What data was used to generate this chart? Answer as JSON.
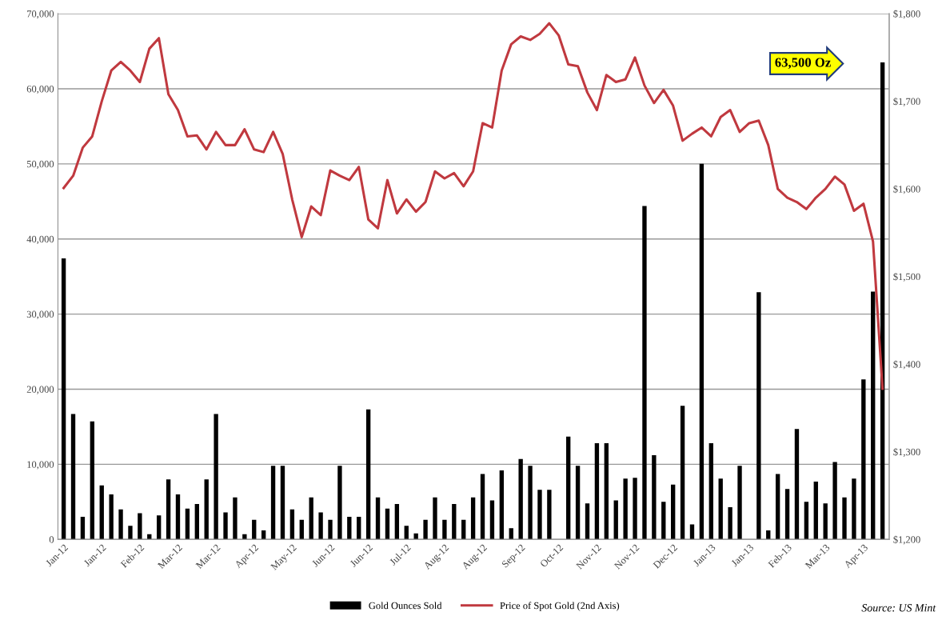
{
  "chart_data": {
    "type": "bar",
    "categories": [
      "Jan-12",
      null,
      null,
      null,
      "Jan-12",
      null,
      null,
      null,
      "Feb-12",
      null,
      null,
      null,
      "Mar-12",
      null,
      null,
      null,
      "Mar-12",
      null,
      null,
      null,
      "Apr-12",
      null,
      null,
      null,
      "May-12",
      null,
      null,
      null,
      "Jun-12",
      null,
      null,
      null,
      "Jun-12",
      null,
      null,
      null,
      "Jul-12",
      null,
      null,
      null,
      "Aug-12",
      null,
      null,
      null,
      "Aug-12",
      null,
      null,
      null,
      "Sep-12",
      null,
      null,
      null,
      "Oct-12",
      null,
      null,
      null,
      "Nov-12",
      null,
      null,
      null,
      "Nov-12",
      null,
      null,
      null,
      "Dec-12",
      null,
      null,
      null,
      "Jan-13",
      null,
      null,
      null,
      "Jan-13",
      null,
      null,
      null,
      "Feb-13",
      null,
      null,
      null,
      "Mar-13",
      null,
      null,
      null,
      "Apr-13",
      null,
      null
    ],
    "series": [
      {
        "name": "Gold Ounces Sold",
        "color": "#000000",
        "values": [
          37400,
          16700,
          3000,
          15700,
          7200,
          6000,
          4000,
          1800,
          3500,
          700,
          3200,
          8000,
          6000,
          4100,
          4700,
          8000,
          16700,
          3600,
          5600,
          700,
          2600,
          1200,
          9800,
          9800,
          4000,
          2600,
          5600,
          3600,
          2600,
          9800,
          3000,
          3000,
          17300,
          5600,
          4100,
          4700,
          1800,
          800,
          2600,
          5600,
          2600,
          4700,
          2600,
          5600,
          8700,
          5200,
          9200,
          1500,
          10700,
          9800,
          6600,
          6600,
          0,
          13700,
          9800,
          4800,
          12800,
          12800,
          5200,
          8100,
          8200,
          44400,
          11200,
          5000,
          7300,
          17800,
          2000,
          50000,
          12800,
          8100,
          4300,
          9800,
          0,
          32900,
          1200,
          8700,
          6700,
          14700,
          5000,
          7700,
          4800,
          10300,
          5600,
          8100,
          21300,
          33000,
          63500
        ]
      },
      {
        "name": "Price of Spot Gold (2nd Axis)",
        "type": "line",
        "axis": "y2",
        "color": "#c0393f",
        "values": [
          1601,
          1615,
          1647,
          1660,
          1700,
          1735,
          1745,
          1735,
          1722,
          1760,
          1772,
          1708,
          1690,
          1660,
          1661,
          1645,
          1665,
          1650,
          1650,
          1668,
          1645,
          1642,
          1665,
          1640,
          1588,
          1545,
          1580,
          1570,
          1621,
          1615,
          1610,
          1625,
          1565,
          1555,
          1610,
          1572,
          1588,
          1574,
          1585,
          1620,
          1612,
          1618,
          1603,
          1620,
          1675,
          1670,
          1735,
          1765,
          1774,
          1770,
          1777,
          1789,
          1775,
          1742,
          1740,
          1710,
          1690,
          1730,
          1722,
          1725,
          1750,
          1718,
          1698,
          1713,
          1695,
          1655,
          1663,
          1670,
          1660,
          1682,
          1690,
          1665,
          1675,
          1678,
          1650,
          1600,
          1590,
          1585,
          1577,
          1590,
          1600,
          1614,
          1605,
          1575,
          1583,
          1540,
          1372
        ]
      }
    ],
    "ylim": [
      0,
      70000
    ],
    "yticks": [
      0,
      {
        "value": 10000,
        "label": "10,000"
      },
      {
        "value": 20000,
        "label": "20,000"
      },
      {
        "value": 30000,
        "label": "30,000"
      },
      {
        "value": 40000,
        "label": "40,000"
      },
      {
        "value": 50000,
        "label": "50,000"
      },
      {
        "value": 60000,
        "label": "60,000"
      },
      {
        "value": 70000,
        "label": "70,000"
      }
    ],
    "y2lim": [
      1200,
      1800
    ],
    "y2ticks": [
      {
        "value": 1200,
        "label": "$1,200"
      },
      {
        "value": 1300,
        "label": "$1,300"
      },
      {
        "value": 1400,
        "label": "$1,400"
      },
      {
        "value": 1500,
        "label": "$1,500"
      },
      {
        "value": 1600,
        "label": "$1,600"
      },
      {
        "value": 1700,
        "label": "$1,700"
      },
      {
        "value": 1800,
        "label": "$1,800"
      }
    ],
    "grid": "y",
    "legend": "bottom",
    "annotations": [
      "63,500 Oz",
      "Source: US Mint"
    ]
  }
}
